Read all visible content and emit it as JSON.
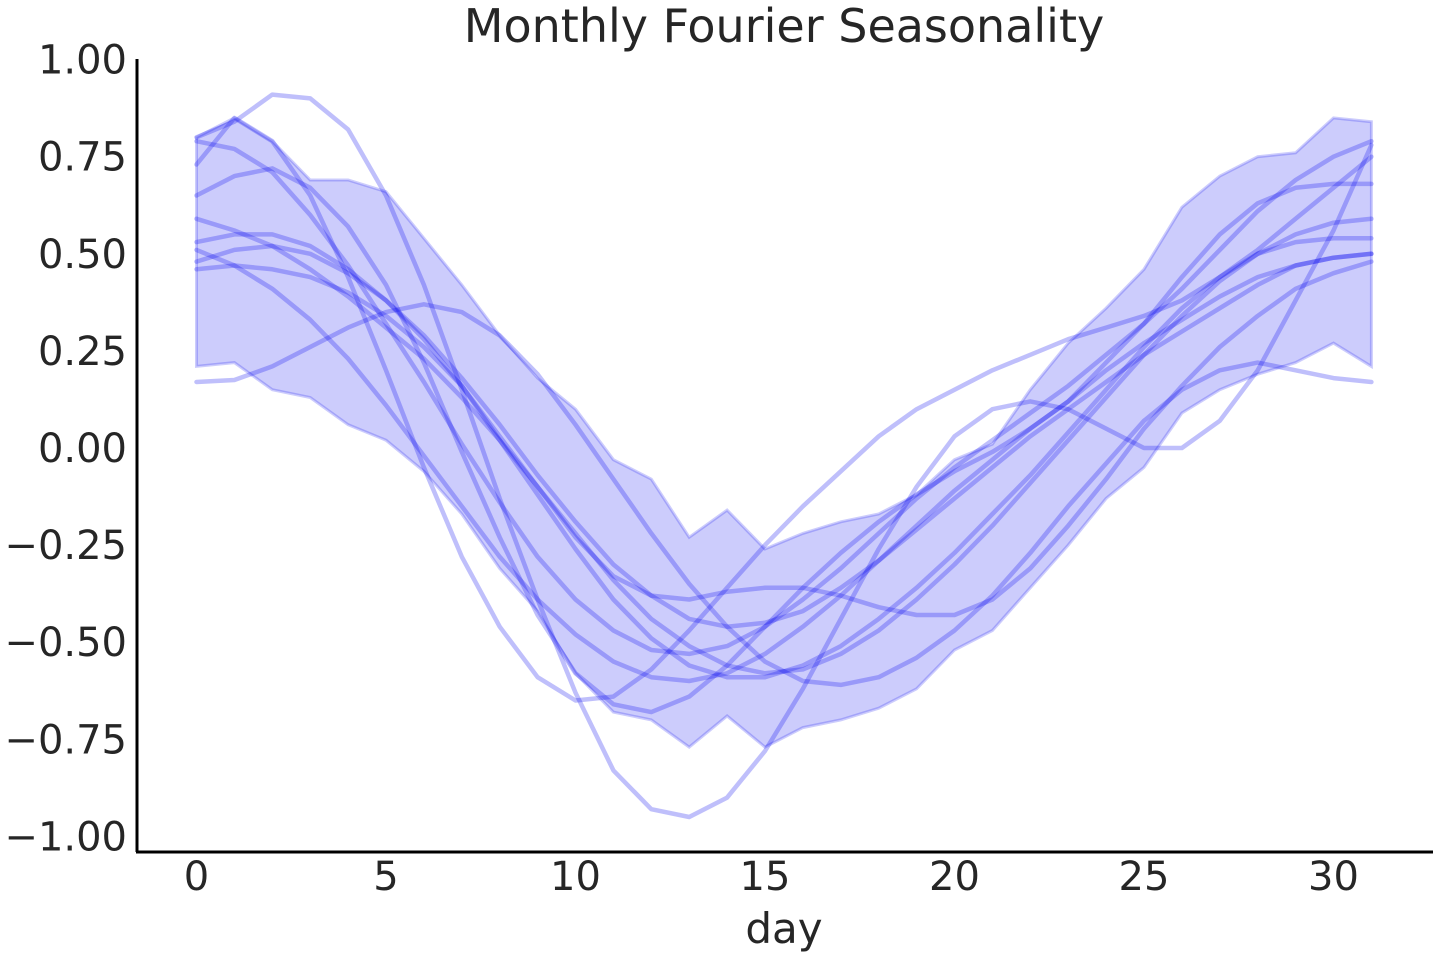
{
  "chart_data": {
    "type": "line",
    "title": "Monthly Fourier Seasonality",
    "xlabel": "day",
    "ylabel": "",
    "xlim": [
      -1.5,
      32.5
    ],
    "ylim": [
      -1.04,
      1.02
    ],
    "xticks": [
      0,
      5,
      10,
      15,
      20,
      25,
      30
    ],
    "xtick_labels": [
      "0",
      "5",
      "10",
      "15",
      "20",
      "25",
      "30"
    ],
    "yticks": [
      1.0,
      0.75,
      0.5,
      0.25,
      0.0,
      -0.25,
      -0.5,
      -0.75,
      -1.0
    ],
    "ytick_labels": [
      "1.00",
      "0.75",
      "0.50",
      "0.25",
      "0.00",
      "−0.25",
      "−0.50",
      "−0.75",
      "−1.00"
    ],
    "grid": false,
    "colors": {
      "line": "#0000ee",
      "band": "#0000ee",
      "axis": "#000000",
      "text": "#262626"
    },
    "x": [
      0,
      1,
      2,
      3,
      4,
      5,
      6,
      7,
      8,
      9,
      10,
      11,
      12,
      13,
      14,
      15,
      16,
      17,
      18,
      19,
      20,
      21,
      22,
      23,
      24,
      25,
      26,
      27,
      28,
      29,
      30,
      31
    ],
    "band": {
      "upper": [
        0.8,
        0.85,
        0.79,
        0.69,
        0.69,
        0.66,
        0.54,
        0.42,
        0.29,
        0.18,
        0.1,
        -0.03,
        -0.08,
        -0.23,
        -0.16,
        -0.26,
        -0.22,
        -0.19,
        -0.17,
        -0.12,
        -0.03,
        0.01,
        0.15,
        0.27,
        0.36,
        0.46,
        0.62,
        0.7,
        0.75,
        0.76,
        0.85,
        0.84
      ],
      "lower": [
        0.21,
        0.22,
        0.15,
        0.13,
        0.06,
        0.02,
        -0.06,
        -0.17,
        -0.31,
        -0.42,
        -0.58,
        -0.68,
        -0.7,
        -0.77,
        -0.69,
        -0.77,
        -0.72,
        -0.7,
        -0.67,
        -0.62,
        -0.52,
        -0.47,
        -0.36,
        -0.25,
        -0.13,
        -0.05,
        0.09,
        0.15,
        0.19,
        0.22,
        0.27,
        0.21
      ]
    },
    "series": [
      {
        "values": [
          0.17,
          0.175,
          0.21,
          0.26,
          0.31,
          0.35,
          0.37,
          0.35,
          0.29,
          0.19,
          0.06,
          -0.08,
          -0.22,
          -0.35,
          -0.46,
          -0.55,
          -0.6,
          -0.61,
          -0.59,
          -0.54,
          -0.47,
          -0.38,
          -0.27,
          -0.15,
          -0.04,
          0.07,
          0.15,
          0.2,
          0.22,
          0.2,
          0.18,
          0.17
        ]
      },
      {
        "values": [
          0.8,
          0.84,
          0.91,
          0.9,
          0.82,
          0.65,
          0.42,
          0.15,
          -0.13,
          -0.39,
          -0.63,
          -0.83,
          -0.93,
          -0.95,
          -0.9,
          -0.78,
          -0.62,
          -0.44,
          -0.26,
          -0.1,
          0.03,
          0.1,
          0.12,
          0.1,
          0.05,
          0.0,
          0.0,
          0.07,
          0.2,
          0.38,
          0.56,
          0.78
        ]
      },
      {
        "values": [
          0.73,
          0.85,
          0.79,
          0.65,
          0.44,
          0.2,
          -0.05,
          -0.28,
          -0.46,
          -0.59,
          -0.65,
          -0.64,
          -0.57,
          -0.47,
          -0.36,
          -0.25,
          -0.15,
          -0.06,
          0.03,
          0.1,
          0.15,
          0.2,
          0.24,
          0.28,
          0.31,
          0.34,
          0.38,
          0.44,
          0.51,
          0.59,
          0.67,
          0.75
        ]
      },
      {
        "values": [
          0.79,
          0.77,
          0.71,
          0.6,
          0.47,
          0.32,
          0.17,
          0.01,
          -0.14,
          -0.28,
          -0.39,
          -0.47,
          -0.52,
          -0.53,
          -0.51,
          -0.46,
          -0.39,
          -0.31,
          -0.22,
          -0.13,
          -0.05,
          0.02,
          0.09,
          0.16,
          0.24,
          0.32,
          0.41,
          0.51,
          0.61,
          0.69,
          0.75,
          0.79
        ]
      },
      {
        "values": [
          0.65,
          0.7,
          0.72,
          0.67,
          0.57,
          0.42,
          0.22,
          -0.01,
          -0.23,
          -0.43,
          -0.58,
          -0.66,
          -0.68,
          -0.64,
          -0.56,
          -0.46,
          -0.36,
          -0.27,
          -0.19,
          -0.12,
          -0.06,
          -0.01,
          0.05,
          0.12,
          0.22,
          0.32,
          0.44,
          0.55,
          0.63,
          0.67,
          0.68,
          0.68
        ]
      },
      {
        "values": [
          0.59,
          0.56,
          0.52,
          0.46,
          0.39,
          0.31,
          0.23,
          0.13,
          0.02,
          -0.1,
          -0.22,
          -0.34,
          -0.44,
          -0.51,
          -0.56,
          -0.58,
          -0.57,
          -0.53,
          -0.47,
          -0.39,
          -0.3,
          -0.2,
          -0.09,
          0.02,
          0.13,
          0.24,
          0.34,
          0.43,
          0.5,
          0.55,
          0.58,
          0.59
        ]
      },
      {
        "values": [
          0.53,
          0.55,
          0.55,
          0.52,
          0.46,
          0.38,
          0.28,
          0.16,
          0.02,
          -0.12,
          -0.26,
          -0.39,
          -0.49,
          -0.56,
          -0.59,
          -0.59,
          -0.56,
          -0.51,
          -0.44,
          -0.36,
          -0.27,
          -0.17,
          -0.07,
          0.04,
          0.15,
          0.26,
          0.36,
          0.44,
          0.5,
          0.53,
          0.54,
          0.54
        ]
      },
      {
        "values": [
          0.51,
          0.47,
          0.41,
          0.33,
          0.23,
          0.11,
          -0.02,
          -0.15,
          -0.28,
          -0.39,
          -0.48,
          -0.55,
          -0.59,
          -0.6,
          -0.58,
          -0.53,
          -0.46,
          -0.38,
          -0.29,
          -0.2,
          -0.11,
          -0.03,
          0.05,
          0.12,
          0.2,
          0.27,
          0.33,
          0.39,
          0.44,
          0.47,
          0.49,
          0.5
        ]
      },
      {
        "values": [
          0.48,
          0.51,
          0.52,
          0.5,
          0.45,
          0.38,
          0.29,
          0.18,
          0.06,
          -0.07,
          -0.19,
          -0.3,
          -0.38,
          -0.44,
          -0.46,
          -0.45,
          -0.42,
          -0.36,
          -0.29,
          -0.21,
          -0.13,
          -0.05,
          0.03,
          0.1,
          0.17,
          0.24,
          0.3,
          0.36,
          0.42,
          0.47,
          0.49,
          0.5
        ]
      },
      {
        "values": [
          0.46,
          0.47,
          0.46,
          0.44,
          0.4,
          0.34,
          0.26,
          0.16,
          0.03,
          -0.1,
          -0.23,
          -0.33,
          -0.38,
          -0.39,
          -0.37,
          -0.36,
          -0.36,
          -0.38,
          -0.41,
          -0.43,
          -0.43,
          -0.39,
          -0.31,
          -0.2,
          -0.08,
          0.05,
          0.16,
          0.26,
          0.34,
          0.41,
          0.45,
          0.48
        ]
      }
    ]
  }
}
